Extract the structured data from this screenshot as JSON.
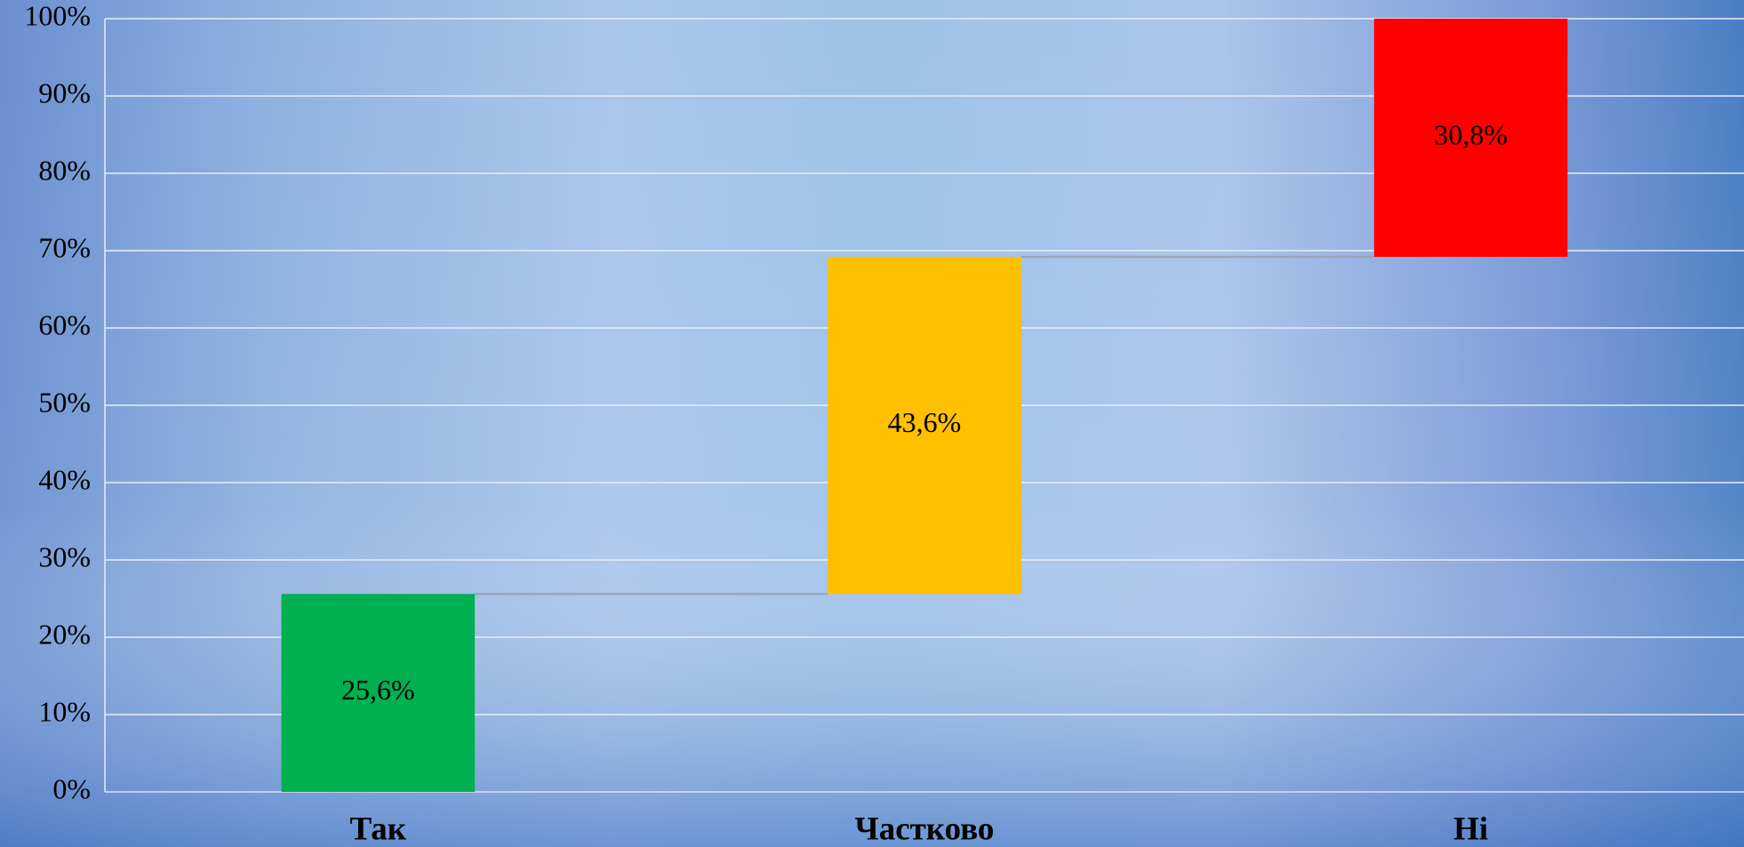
{
  "chart_data": {
    "type": "waterfall",
    "categories": [
      "Так",
      "Частково",
      "Ні"
    ],
    "values": [
      25.6,
      43.6,
      30.8
    ],
    "value_labels": [
      "25,6%",
      "43,6%",
      "30,8%"
    ],
    "colors": [
      "#00b050",
      "#ffc000",
      "#ff0000"
    ],
    "ylim": [
      0,
      100
    ],
    "yticks": [
      {
        "value": 0,
        "label": "0%"
      },
      {
        "value": 10,
        "label": "10%"
      },
      {
        "value": 20,
        "label": "20%"
      },
      {
        "value": 30,
        "label": "30%"
      },
      {
        "value": 40,
        "label": "40%"
      },
      {
        "value": 50,
        "label": "50%"
      },
      {
        "value": 60,
        "label": "60%"
      },
      {
        "value": 70,
        "label": "70%"
      },
      {
        "value": 80,
        "label": "80%"
      },
      {
        "value": 90,
        "label": "90%"
      },
      {
        "value": 100,
        "label": "100%"
      }
    ],
    "grid": true
  }
}
